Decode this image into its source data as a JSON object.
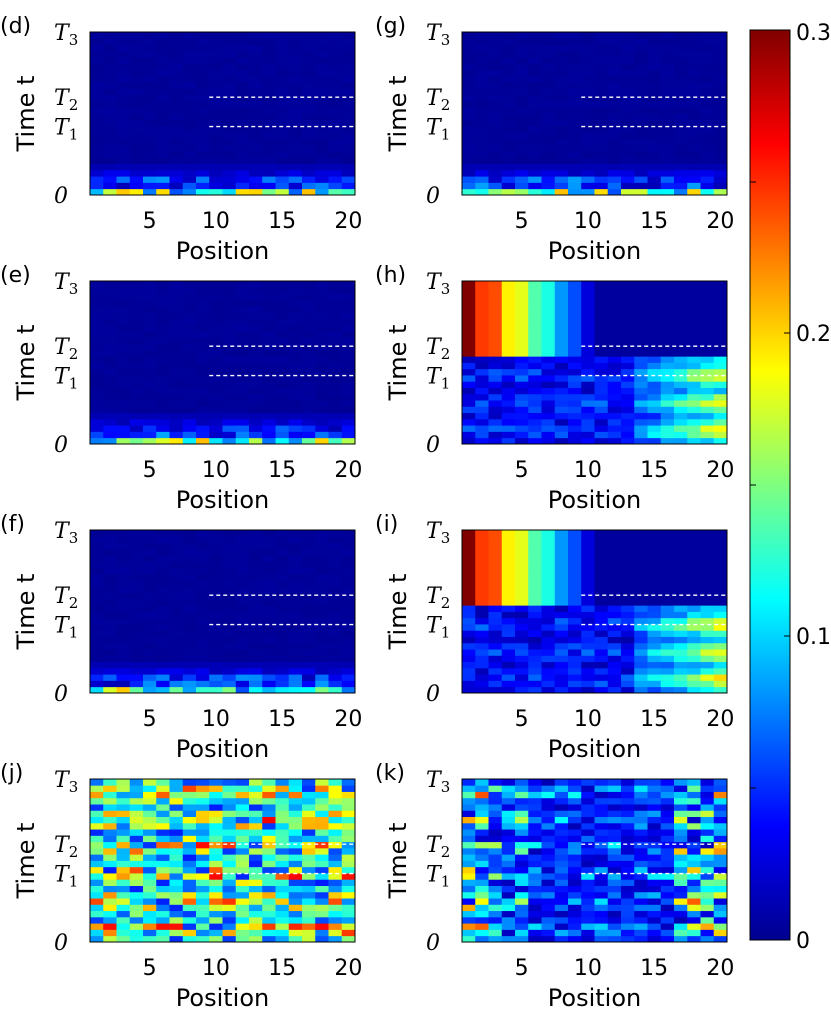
{
  "chart_data": {
    "type": "heatmap",
    "colormap": "jet",
    "xlabel": "Position",
    "ylabel": "Time t",
    "x_ticks": [
      "5",
      "10",
      "15",
      "20"
    ],
    "y_ticks": [
      {
        "main": "T",
        "sub": "3"
      },
      {
        "main": "T",
        "sub": "2"
      },
      {
        "main": "T",
        "sub": "1"
      },
      {
        "main": "0",
        "sub": ""
      }
    ],
    "colorbar": {
      "range": [
        0,
        0.3
      ],
      "ticks": [
        "0.3",
        "0.2",
        "0.1",
        "0"
      ]
    },
    "panels": [
      {
        "label": "(d)",
        "pattern": "decay"
      },
      {
        "label": "(e)",
        "pattern": "decay"
      },
      {
        "label": "(f)",
        "pattern": "decay"
      },
      {
        "label": "(g)",
        "pattern": "decay"
      },
      {
        "label": "(h)",
        "pattern": "localized"
      },
      {
        "label": "(i)",
        "pattern": "localized"
      },
      {
        "label": "(j)",
        "pattern": "chaotic"
      },
      {
        "label": "(k)",
        "pattern": "chaotic-right"
      }
    ]
  }
}
